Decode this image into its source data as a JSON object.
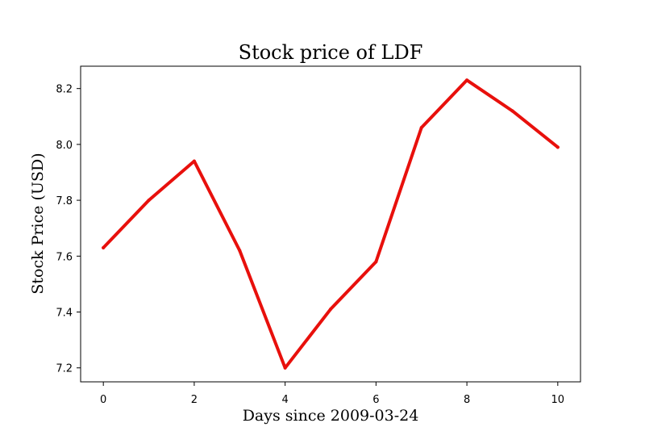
{
  "chart_data": {
    "type": "line",
    "title": "Stock price of LDF",
    "xlabel": "Days since 2009-03-24",
    "ylabel": "Stock Price (USD)",
    "x": [
      0,
      1,
      2,
      3,
      4,
      5,
      6,
      7,
      8,
      9,
      10
    ],
    "series": [
      {
        "values": [
          7.63,
          7.8,
          7.94,
          7.62,
          7.2,
          7.41,
          7.58,
          8.06,
          8.23,
          8.12,
          7.99
        ],
        "color": "#e8100c"
      }
    ],
    "xlim": [
      -0.5,
      10.5
    ],
    "ylim": [
      7.15,
      8.28
    ],
    "xticks": [
      0,
      2,
      4,
      6,
      8,
      10
    ],
    "xtick_labels": [
      "0",
      "2",
      "4",
      "6",
      "8",
      "10"
    ],
    "yticks": [
      7.2,
      7.4,
      7.6,
      7.8,
      8.0,
      8.2
    ],
    "ytick_labels": [
      "7.2",
      "7.4",
      "7.6",
      "7.8",
      "8.0",
      "8.2"
    ],
    "grid": false,
    "legend": "none"
  }
}
